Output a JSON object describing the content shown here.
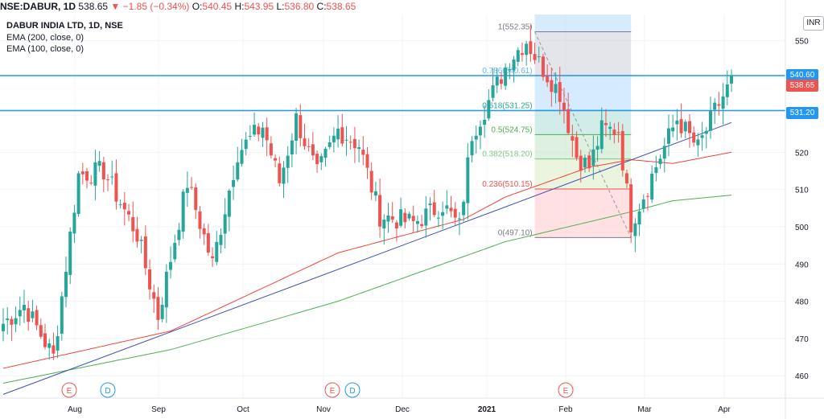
{
  "header": {
    "symbol": "NSE:DABUR, 1D",
    "last": "538.65",
    "change": "−1.85 (−0.34%)",
    "o_label": "O:",
    "o": "540.45",
    "h_label": "H:",
    "h": "543.95",
    "l_label": "L:",
    "l": "536.80",
    "c_label": "C:",
    "c": "538.65"
  },
  "legend": {
    "title": "DABUR INDIA LTD, 1D, NSE",
    "ema200": "EMA (200, close, 0)",
    "ema100": "EMA (100, close, 0)"
  },
  "currency": "INR",
  "price_tags": {
    "line_upper": "540.60",
    "last": "538.65",
    "line_lower": "531.20"
  },
  "colors": {
    "up": "#26a69a",
    "down": "#ef5350",
    "ema200": "#4caf50",
    "ema100": "#f44336",
    "trend": "#3f51b5",
    "hline": "#2196f3"
  },
  "chart_data": {
    "type": "candlestick",
    "ylim": [
      454,
      557
    ],
    "y_ticks": [
      460,
      470,
      480,
      490,
      500,
      510,
      520,
      530,
      540,
      550
    ],
    "x_ticks": [
      {
        "label": "Aug",
        "bold": false
      },
      {
        "label": "Sep",
        "bold": false
      },
      {
        "label": "Oct",
        "bold": false
      },
      {
        "label": "Nov",
        "bold": false
      },
      {
        "label": "Dec",
        "bold": false
      },
      {
        "label": "2021",
        "bold": true
      },
      {
        "label": "Feb",
        "bold": false
      },
      {
        "label": "Mar",
        "bold": false
      },
      {
        "label": "Apr",
        "bold": false
      }
    ],
    "candle_count": 175,
    "anchors": [
      [
        0,
        474
      ],
      [
        5,
        479
      ],
      [
        12,
        465
      ],
      [
        18,
        514
      ],
      [
        24,
        515
      ],
      [
        32,
        498
      ],
      [
        37,
        476
      ],
      [
        44,
        512
      ],
      [
        50,
        490
      ],
      [
        56,
        520
      ],
      [
        62,
        527
      ],
      [
        66,
        512
      ],
      [
        70,
        529
      ],
      [
        75,
        514
      ],
      [
        80,
        526
      ],
      [
        85,
        522
      ],
      [
        90,
        503
      ],
      [
        98,
        501
      ],
      [
        105,
        506
      ],
      [
        109,
        500
      ],
      [
        112,
        525
      ],
      [
        117,
        536
      ],
      [
        121,
        545
      ],
      [
        125,
        550
      ],
      [
        128,
        544
      ],
      [
        133,
        536
      ],
      [
        137,
        519
      ],
      [
        140,
        516
      ],
      [
        143,
        526
      ],
      [
        147,
        526
      ],
      [
        150,
        501
      ],
      [
        154,
        511
      ],
      [
        157,
        519
      ],
      [
        161,
        529
      ],
      [
        166,
        521
      ],
      [
        170,
        531
      ],
      [
        174,
        539
      ]
    ],
    "ema200": {
      "name": "EMA (200, close, 0)",
      "points": [
        [
          0,
          458
        ],
        [
          40,
          467
        ],
        [
          80,
          480
        ],
        [
          120,
          496
        ],
        [
          150,
          504
        ],
        [
          160,
          507
        ],
        [
          174,
          508.5
        ]
      ]
    },
    "ema100": {
      "name": "EMA (100, close, 0)",
      "points": [
        [
          0,
          462
        ],
        [
          40,
          472
        ],
        [
          80,
          493
        ],
        [
          110,
          502
        ],
        [
          120,
          508
        ],
        [
          140,
          516
        ],
        [
          150,
          518
        ],
        [
          160,
          517
        ],
        [
          174,
          520
        ]
      ]
    },
    "trendline": {
      "from": [
        0,
        455
      ],
      "to": [
        174,
        528
      ]
    },
    "horizontal_lines": [
      540.6,
      531.2
    ],
    "fibonacci": {
      "start_index": 127,
      "end_index": 150,
      "levels": [
        {
          "ratio": "1",
          "value": 552.35,
          "label": "1(552.35)",
          "fill": "#d1d4dc",
          "color": "#787b86"
        },
        {
          "ratio": "0.786",
          "value": 540.61,
          "label": "0.786(540.61)",
          "fill": "#bbdefb",
          "color": "#64b5f6"
        },
        {
          "ratio": "0.618",
          "value": 531.25,
          "label": "0.618(531.25)",
          "fill": "#b2dfdb",
          "color": "#26a69a"
        },
        {
          "ratio": "0.5",
          "value": 524.75,
          "label": "0.5(524.75)",
          "fill": "#c8e6c9",
          "color": "#4caf50"
        },
        {
          "ratio": "0.382",
          "value": 518.2,
          "label": "0.382(518.20)",
          "fill": "#dcedc8",
          "color": "#81c784"
        },
        {
          "ratio": "0.236",
          "value": 510.15,
          "label": "0.236(510.15)",
          "fill": "#ffcdd2",
          "color": "#ef5350"
        },
        {
          "ratio": "0",
          "value": 497.1,
          "label": "0(497.10)",
          "fill": "#ffcdd2",
          "color": "#787b86"
        }
      ]
    },
    "events": [
      {
        "label": "E",
        "color": "#ef5350"
      },
      {
        "label": "D",
        "color": "#2196f3"
      },
      {
        "label": "E",
        "color": "#ef5350"
      },
      {
        "label": "D",
        "color": "#2196f3"
      },
      {
        "label": "E",
        "color": "#ef5350"
      }
    ]
  }
}
